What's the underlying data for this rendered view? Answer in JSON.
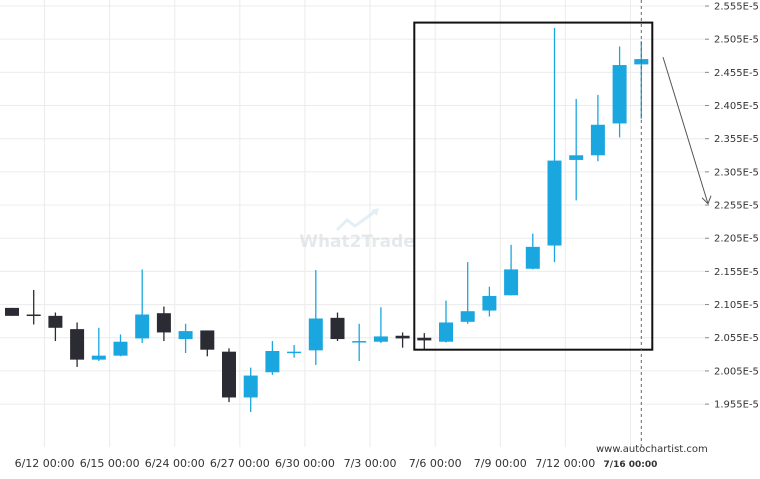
{
  "watermark": {
    "text": "What2Trade"
  },
  "source": "www.autochartist.com",
  "chart_data": {
    "type": "candlestick",
    "ylim": [
      1.925e-05,
      2.555e-05
    ],
    "ytick_labels": [
      "2.555E-5",
      "2.505E-5",
      "2.455E-5",
      "2.405E-5",
      "2.355E-5",
      "2.305E-5",
      "2.255E-5",
      "2.205E-5",
      "2.155E-5",
      "2.105E-5",
      "2.055E-5",
      "2.005E-5",
      "1.955E-5"
    ],
    "ytick_values": [
      2.555e-05,
      2.505e-05,
      2.455e-05,
      2.405e-05,
      2.355e-05,
      2.305e-05,
      2.255e-05,
      2.205e-05,
      2.155e-05,
      2.105e-05,
      2.055e-05,
      2.005e-05,
      1.955e-05
    ],
    "x_labels": [
      {
        "index": 1.5,
        "label": "6/12 00:00"
      },
      {
        "index": 4.5,
        "label": "6/15 00:00"
      },
      {
        "index": 7.5,
        "label": "6/24 00:00"
      },
      {
        "index": 10.5,
        "label": "6/27 00:00"
      },
      {
        "index": 13.5,
        "label": "6/30 00:00"
      },
      {
        "index": 16.5,
        "label": "7/3 00:00"
      },
      {
        "index": 19.5,
        "label": "7/6 00:00"
      },
      {
        "index": 22.5,
        "label": "7/9 00:00"
      },
      {
        "index": 25.5,
        "label": "7/12 00:00"
      },
      {
        "index": 28.5,
        "label": "7/16 00:00",
        "bold": true
      }
    ],
    "candles": [
      {
        "o": 2.1e-05,
        "h": 2.1e-05,
        "l": 2.088e-05,
        "c": 2.088e-05
      },
      {
        "o": 2.09e-05,
        "h": 2.127e-05,
        "l": 2.075e-05,
        "c": 2.089e-05
      },
      {
        "o": 2.088e-05,
        "h": 2.093e-05,
        "l": 2.05e-05,
        "c": 2.07e-05
      },
      {
        "o": 2.068e-05,
        "h": 2.078e-05,
        "l": 2.011e-05,
        "c": 2.022e-05
      },
      {
        "o": 2.022e-05,
        "h": 2.07e-05,
        "l": 2.02e-05,
        "c": 2.028e-05
      },
      {
        "o": 2.028e-05,
        "h": 2.06e-05,
        "l": 2.027e-05,
        "c": 2.049e-05
      },
      {
        "o": 2.054e-05,
        "h": 2.158e-05,
        "l": 2.047e-05,
        "c": 2.09e-05
      },
      {
        "o": 2.092e-05,
        "h": 2.102e-05,
        "l": 2.05e-05,
        "c": 2.063e-05
      },
      {
        "o": 2.053e-05,
        "h": 2.076e-05,
        "l": 2.032e-05,
        "c": 2.065e-05
      },
      {
        "o": 2.066e-05,
        "h": 2.066e-05,
        "l": 2.027e-05,
        "c": 2.037e-05
      },
      {
        "o": 2.034e-05,
        "h": 2.039e-05,
        "l": 1.958e-05,
        "c": 1.965e-05
      },
      {
        "o": 1.965e-05,
        "h": 2.01e-05,
        "l": 1.943e-05,
        "c": 1.998e-05
      },
      {
        "o": 2.003e-05,
        "h": 2.05e-05,
        "l": 1.999e-05,
        "c": 2.035e-05
      },
      {
        "o": 2.034e-05,
        "h": 2.044e-05,
        "l": 2.025e-05,
        "c": 2.034e-05
      },
      {
        "o": 2.036e-05,
        "h": 2.157e-05,
        "l": 2.014e-05,
        "c": 2.084e-05
      },
      {
        "o": 2.085e-05,
        "h": 2.093e-05,
        "l": 2.05e-05,
        "c": 2.053e-05
      },
      {
        "o": 2.05e-05,
        "h": 2.076e-05,
        "l": 2.02e-05,
        "c": 2.05e-05
      },
      {
        "o": 2.049e-05,
        "h": 2.101e-05,
        "l": 2.047e-05,
        "c": 2.057e-05
      },
      {
        "o": 2.058e-05,
        "h": 2.063e-05,
        "l": 2.04e-05,
        "c": 2.054e-05
      },
      {
        "o": 2.055e-05,
        "h": 2.062e-05,
        "l": 2.037e-05,
        "c": 2.051e-05
      },
      {
        "o": 2.049e-05,
        "h": 2.111e-05,
        "l": 2.048e-05,
        "c": 2.078e-05
      },
      {
        "o": 2.079e-05,
        "h": 2.169e-05,
        "l": 2.076e-05,
        "c": 2.095e-05
      },
      {
        "o": 2.096e-05,
        "h": 2.132e-05,
        "l": 2.087e-05,
        "c": 2.118e-05
      },
      {
        "o": 2.119e-05,
        "h": 2.195e-05,
        "l": 2.119e-05,
        "c": 2.158e-05
      },
      {
        "o": 2.159e-05,
        "h": 2.212e-05,
        "l": 2.158e-05,
        "c": 2.192e-05
      },
      {
        "o": 2.194e-05,
        "h": 2.522e-05,
        "l": 2.169e-05,
        "c": 2.322e-05
      },
      {
        "o": 2.323e-05,
        "h": 2.415e-05,
        "l": 2.262e-05,
        "c": 2.33e-05
      },
      {
        "o": 2.33e-05,
        "h": 2.421e-05,
        "l": 2.321e-05,
        "c": 2.376e-05
      },
      {
        "o": 2.378e-05,
        "h": 2.494e-05,
        "l": 2.357e-05,
        "c": 2.466e-05
      },
      {
        "o": 2.467e-05,
        "h": 2.502e-05,
        "l": 2.385e-05,
        "c": 2.475e-05
      }
    ],
    "pattern_box": {
      "from_index": 19,
      "to_index": 29,
      "high": 2.53e-05,
      "low": 2.037e-05
    },
    "forecast_arrow": {
      "from_value": 2.478e-05,
      "to_value": 2.257e-05
    },
    "colors": {
      "up": "#1aa6df",
      "down": "#2b2b33",
      "box": "#111111",
      "grid": "#ececec",
      "axis_text": "#333333"
    }
  }
}
